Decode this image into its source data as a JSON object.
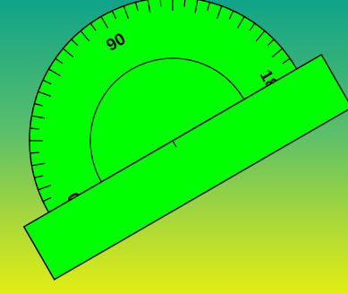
{
  "protractor": {
    "fill_color": "#00ff00",
    "stroke_color": "#000000",
    "background_top": "#0fa38a",
    "background_bottom": "#e2ee12",
    "labels": [
      {
        "value": 0,
        "text": "0"
      },
      {
        "value": 90,
        "text": "90"
      },
      {
        "value": 180,
        "text": "180"
      }
    ],
    "scale_min": 0,
    "scale_max": 180
  }
}
